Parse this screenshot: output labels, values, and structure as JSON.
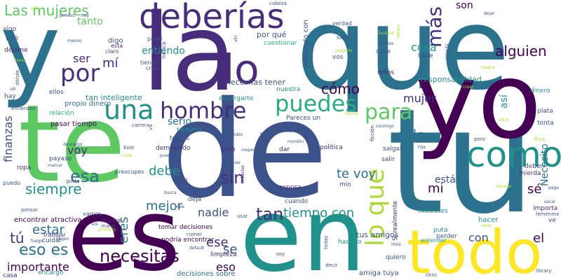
{
  "colors": {
    "background": "#ffffff",
    "palette": [
      "#440154",
      "#472d7b",
      "#3b528b",
      "#2c728e",
      "#21918c",
      "#28ae80",
      "#5ec962",
      "#addc30",
      "#fde725"
    ]
  },
  "words": [
    {
      "id": "que",
      "text": "que"
    },
    {
      "id": "de",
      "text": "de"
    },
    {
      "id": "tu",
      "text": "tu"
    },
    {
      "id": "yo",
      "text": "yo"
    },
    {
      "id": "la",
      "text": "la"
    },
    {
      "id": "te",
      "text": "te"
    },
    {
      "id": "y",
      "text": "y"
    },
    {
      "id": "es",
      "text": "es"
    },
    {
      "id": "en",
      "text": "en"
    },
    {
      "id": "todo",
      "text": "todo"
    },
    {
      "id": "deberias",
      "text": "deberías"
    },
    {
      "id": "lo",
      "text": "lo"
    },
    {
      "id": "como",
      "text": "como"
    },
    {
      "id": "una",
      "text": "una"
    },
    {
      "id": "hombre",
      "text": "hombre"
    },
    {
      "id": "puedes",
      "text": "puedes"
    },
    {
      "id": "por",
      "text": "por"
    },
    {
      "id": "para",
      "text": "para"
    },
    {
      "id": "lo-que",
      "text": "lo que"
    },
    {
      "id": "mas",
      "text": "más"
    },
    {
      "id": "las-mujeres",
      "text": "Las mujeres"
    },
    {
      "id": "alguien",
      "text": "alguien"
    },
    {
      "id": "sin",
      "text": "sin"
    },
    {
      "id": "necesitas",
      "text": "necesitas"
    },
    {
      "id": "tan",
      "text": "tan"
    },
    {
      "id": "esa",
      "text": "esa"
    },
    {
      "id": "siempre",
      "text": "siempre"
    },
    {
      "id": "eso-es",
      "text": "eso es"
    },
    {
      "id": "tiempo-con",
      "text": "tiempo con"
    },
    {
      "id": "te-voy",
      "text": "te voy"
    },
    {
      "id": "como-acc",
      "text": "cómo"
    },
    {
      "id": "solo",
      "text": "solo"
    },
    {
      "id": "mujer",
      "text": "mujer"
    },
    {
      "id": "debe",
      "text": "debe"
    },
    {
      "id": "mejor",
      "text": "mejor"
    },
    {
      "id": "nadie",
      "text": "nadie"
    },
    {
      "id": "eres",
      "text": "eres"
    },
    {
      "id": "con",
      "text": "con"
    },
    {
      "id": "el",
      "text": "el"
    },
    {
      "id": "se",
      "text": "se"
    },
    {
      "id": "ese",
      "text": "ese"
    },
    {
      "id": "eso",
      "text": "eso"
    },
    {
      "id": "mi",
      "text": "mi"
    },
    {
      "id": "tu-acc",
      "text": "tú"
    },
    {
      "id": "estar",
      "text": "estar"
    },
    {
      "id": "importante",
      "text": "importante"
    },
    {
      "id": "ser",
      "text": "ser"
    },
    {
      "id": "mi-acc",
      "text": "mí"
    },
    {
      "id": "entiendo",
      "text": "entiendo"
    },
    {
      "id": "cosa",
      "text": "cosa"
    },
    {
      "id": "tanto",
      "text": "tanto"
    },
    {
      "id": "son",
      "text": "son"
    },
    {
      "id": "esta",
      "text": "está"
    },
    {
      "id": "se-acc",
      "text": "sé"
    },
    {
      "id": "voy",
      "text": "voy"
    },
    {
      "id": "serio",
      "text": "serio"
    },
    {
      "id": "finanzas",
      "text": "finanzas"
    },
    {
      "id": "si",
      "text": "Si"
    },
    {
      "id": "asi",
      "text": "así"
    },
    {
      "id": "necesito",
      "text": "Necesito"
    },
    {
      "id": "responsabilidad",
      "text": "responsabilidad"
    },
    {
      "id": "necesitas-tener",
      "text": "necesitas tener"
    },
    {
      "id": "tan-inteligente",
      "text": "tan inteligente"
    },
    {
      "id": "propio-dinero",
      "text": "propio dinero"
    },
    {
      "id": "pasar-tiempo",
      "text": "pasar tiempo"
    },
    {
      "id": "encontrar-atractiva",
      "text": "encontrar atractiva"
    },
    {
      "id": "tomar-decisiones",
      "text": "tomar decisiones"
    },
    {
      "id": "podria-encontrar",
      "text": "podría encontrar"
    },
    {
      "id": "decisiones-sobre",
      "text": "decisiones sobre"
    },
    {
      "id": "tus-amigos",
      "text": "tus amigos"
    },
    {
      "id": "por-que",
      "text": "por qué"
    },
    {
      "id": "hablando-con",
      "text": "hablando con"
    },
    {
      "id": "cuestionar",
      "text": "cuestionar"
    },
    {
      "id": "digo",
      "text": "digo"
    },
    {
      "id": "hijo",
      "text": "hijo"
    },
    {
      "id": "algo",
      "text": "algo"
    },
    {
      "id": "dejame",
      "text": "déjame"
    },
    {
      "id": "ellos",
      "text": "ellos"
    },
    {
      "id": "hay",
      "text": "hay"
    },
    {
      "id": "relacion",
      "text": "relación"
    },
    {
      "id": "encargarte",
      "text": "encargarte"
    },
    {
      "id": "nuestra",
      "text": "nuestra"
    },
    {
      "id": "pareces-un",
      "text": "Pareces un"
    },
    {
      "id": "tonteria",
      "text": "tontería"
    },
    {
      "id": "demasiado",
      "text": "demasiado"
    },
    {
      "id": "temas",
      "text": "temas"
    },
    {
      "id": "politica",
      "text": "política"
    },
    {
      "id": "dar",
      "text": "dar"
    },
    {
      "id": "pido",
      "text": "pido"
    },
    {
      "id": "salir",
      "text": "salir"
    },
    {
      "id": "salgas",
      "text": "salgas"
    },
    {
      "id": "mio",
      "text": "mío"
    },
    {
      "id": "esposa",
      "text": "esposa"
    },
    {
      "id": "cuando",
      "text": "cuando"
    },
    {
      "id": "deja",
      "text": "deja"
    },
    {
      "id": "si-realmente",
      "text": "Si realmente"
    },
    {
      "id": "necesites",
      "text": "necesites"
    },
    {
      "id": "hacer",
      "text": "hacer"
    },
    {
      "id": "perder",
      "text": "perder"
    },
    {
      "id": "puta",
      "text": "puta"
    },
    {
      "id": "hacerlo",
      "text": "hacerlo"
    },
    {
      "id": "entender",
      "text": "entender"
    },
    {
      "id": "quiero",
      "text": "quiero"
    },
    {
      "id": "amiga-tuya",
      "text": "amiga tuya"
    },
    {
      "id": "limpieza",
      "text": "limpieza"
    },
    {
      "id": "madre",
      "text": "madre"
    },
    {
      "id": "vamos",
      "text": "vamos"
    },
    {
      "id": "casa",
      "text": "casa"
    },
    {
      "id": "ropa",
      "text": "ropa"
    },
    {
      "id": "payaso",
      "text": "payaso"
    },
    {
      "id": "puedo",
      "text": "puedo"
    },
    {
      "id": "encargo",
      "text": "encargo"
    },
    {
      "id": "cuidar",
      "text": "cuidar"
    },
    {
      "id": "trabajar",
      "text": "trabajar"
    },
    {
      "id": "dinero",
      "text": "dinero"
    },
    {
      "id": "plata",
      "text": "plata"
    },
    {
      "id": "tonta",
      "text": "tonta"
    },
    {
      "id": "deben",
      "text": "deben"
    },
    {
      "id": "mierda",
      "text": "mierda"
    },
    {
      "id": "importa",
      "text": "importa"
    },
    {
      "id": "ve",
      "text": "ve"
    },
    {
      "id": "calle",
      "text": "calle"
    },
    {
      "id": "hace",
      "text": "hace"
    },
    {
      "id": "ninos",
      "text": "niños"
    },
    {
      "id": "verdad",
      "text": "verdad"
    },
    {
      "id": "saber",
      "text": "saber"
    },
    {
      "id": "vos",
      "text": "vos"
    },
    {
      "id": "claro",
      "text": "claro"
    },
    {
      "id": "tienes",
      "text": "tienes"
    },
    {
      "id": "nunca",
      "text": "nunca"
    },
    {
      "id": "creo",
      "text": "creo"
    },
    {
      "id": "pasar",
      "text": "pasar"
    },
    {
      "id": "esta-2",
      "text": "esta"
    },
    {
      "id": "cabeza",
      "text": "cabeza"
    },
    {
      "id": "hagas",
      "text": "hagas"
    },
    {
      "id": "genesis",
      "text": "genesis"
    },
    {
      "id": "hoy",
      "text": "hoy"
    },
    {
      "id": "dejar",
      "text": "dejar"
    },
    {
      "id": "aspecto",
      "text": "aspecto"
    },
    {
      "id": "machos",
      "text": "machos"
    },
    {
      "id": "busque",
      "text": "busque"
    },
    {
      "id": "pagaste",
      "text": "pagaste"
    },
    {
      "id": "creer",
      "text": "creer"
    },
    {
      "id": "libreta",
      "text": "libreta"
    },
    {
      "id": "magra",
      "text": "magra"
    },
    {
      "id": "mas-2",
      "text": "mas"
    },
    {
      "id": "deberian",
      "text": "deberían"
    },
    {
      "id": "usar",
      "text": "usar"
    },
    {
      "id": "comer",
      "text": "comer"
    },
    {
      "id": "default",
      "text": "default"
    },
    {
      "id": "soy",
      "text": "soy"
    },
    {
      "id": "todas",
      "text": "todas"
    },
    {
      "id": "decir",
      "text": "decir"
    },
    {
      "id": "hola",
      "text": "Hola"
    },
    {
      "id": "ohhh",
      "text": "Ohhh"
    },
    {
      "id": "library",
      "text": "library"
    },
    {
      "id": "pero",
      "text": "pero"
    },
    {
      "id": "hija",
      "text": "hija"
    },
    {
      "id": "policia",
      "text": "policía"
    },
    {
      "id": "conmigo",
      "text": "conmigo"
    },
    {
      "id": "ficcion",
      "text": "ficción"
    },
    {
      "id": "monton",
      "text": "montón"
    },
    {
      "id": "nombre",
      "text": "nombre"
    },
    {
      "id": "podes",
      "text": "podés"
    },
    {
      "id": "este",
      "text": "Este"
    },
    {
      "id": "preocupes",
      "text": "preocupes"
    },
    {
      "id": "papel",
      "text": "papel"
    },
    {
      "id": "busca",
      "text": "busca"
    },
    {
      "id": "idea",
      "text": "idea"
    },
    {
      "id": "matar",
      "text": "matar"
    },
    {
      "id": "marcar",
      "text": "marcar"
    },
    {
      "id": "gusta",
      "text": "gusta"
    },
    {
      "id": "pensar",
      "text": "pensar"
    },
    {
      "id": "fuego",
      "text": "fuego"
    },
    {
      "id": "libgen",
      "text": "libgen"
    },
    {
      "id": "descargo",
      "text": "descargo"
    },
    {
      "id": "carrera",
      "text": "carrera"
    },
    {
      "id": "pueda",
      "text": "pueda"
    },
    {
      "id": "va",
      "text": "va"
    },
    {
      "id": "entiendes",
      "text": "entiendes"
    },
    {
      "id": "donde",
      "text": "dónde"
    },
    {
      "id": "un",
      "text": "un"
    },
    {
      "id": "menos",
      "text": "menos"
    },
    {
      "id": "sos",
      "text": "sos"
    },
    {
      "id": "rica",
      "text": "Rica"
    },
    {
      "id": "aca",
      "text": "Aca"
    },
    {
      "id": "tatuaje",
      "text": "tatuaje"
    },
    {
      "id": "paga",
      "text": "paga"
    },
    {
      "id": "sacar",
      "text": "sacar"
    },
    {
      "id": "femenina",
      "text": "femenina"
    },
    {
      "id": "anda",
      "text": "anda"
    },
    {
      "id": "cada",
      "text": "cada"
    },
    {
      "id": "roeper",
      "text": "roeper"
    },
    {
      "id": "ahi",
      "text": "ahí"
    },
    {
      "id": "llamo",
      "text": "llamo"
    },
    {
      "id": "prometo",
      "text": "prometo"
    },
    {
      "id": "alla",
      "text": "allá"
    },
    {
      "id": "nadie-2",
      "text": "tienda"
    }
  ]
}
